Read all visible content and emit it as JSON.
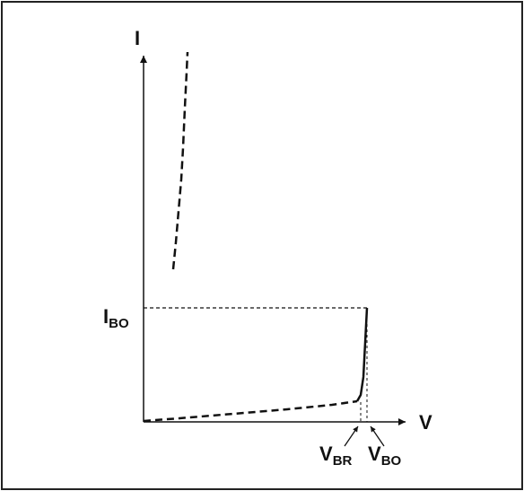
{
  "diagram": {
    "axes": {
      "y_label": "I",
      "x_label": "V"
    },
    "labels": {
      "ibo_main": "I",
      "ibo_sub": "BO",
      "vbr_main": "V",
      "vbr_sub": "BR",
      "vbo_main": "V",
      "vbo_sub": "BO"
    },
    "colors": {
      "line": "#111111",
      "background": "#ffffff",
      "border": "#222222"
    }
  }
}
